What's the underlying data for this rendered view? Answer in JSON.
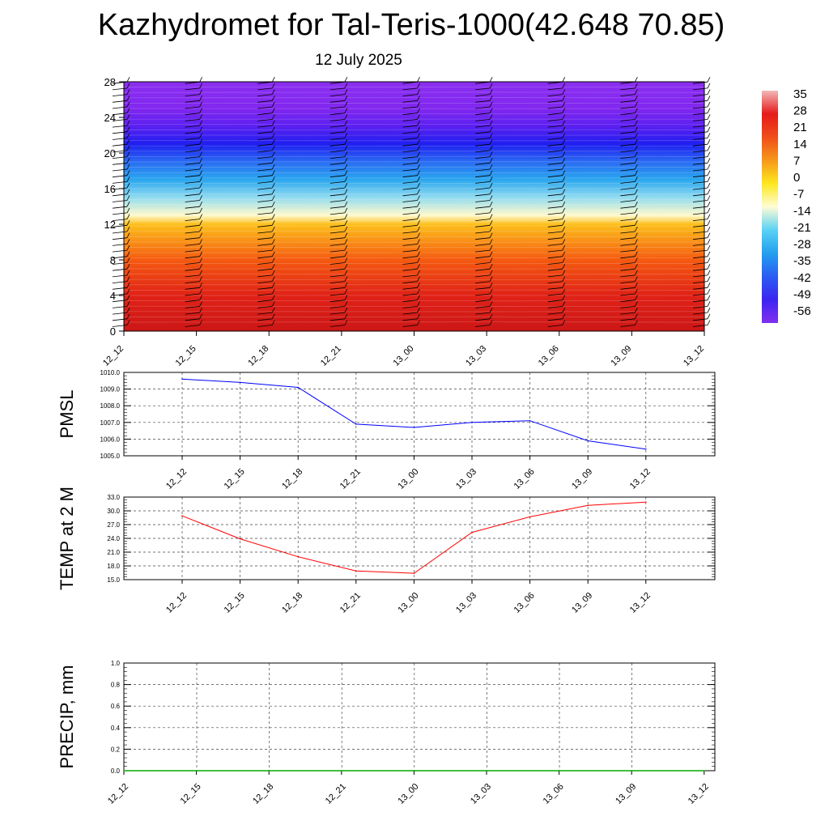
{
  "title": "Kazhydromet for Tal-Teris-1000(42.648 70.85)",
  "subtitle": "12 July 2025",
  "chart_data": [
    {
      "type": "heatmap",
      "description_role": "vertical temperature cross-section",
      "y_ticks": [
        0,
        4,
        8,
        12,
        16,
        20,
        24,
        28
      ],
      "ylim": [
        0,
        28
      ],
      "x_ticks": [
        "12_12",
        "12_15",
        "12_18",
        "12_21",
        "13_00",
        "13_03",
        "13_06",
        "13_09",
        "13_12"
      ],
      "colorbar_labels": [
        "35",
        "28",
        "21",
        "14",
        "7",
        "0",
        "-7",
        "-14",
        "-21",
        "-28",
        "-35",
        "-42",
        "-49",
        "-56"
      ],
      "colorbar_colors": [
        "#f4b7b7",
        "#e51a1a",
        "#f04e1a",
        "#f7981a",
        "#fde81f",
        "#fffcd6",
        "#5ad2f5",
        "#239fee",
        "#2b5cf3",
        "#3b24f0",
        "#8230ef"
      ],
      "profile_levels": [
        0,
        4,
        8,
        12,
        13,
        15,
        17,
        19,
        21,
        23,
        25,
        28
      ],
      "profile_colors": [
        "#cc1717",
        "#e02217",
        "#f55a10",
        "#fcc01c",
        "#fff9cc",
        "#92dcf0",
        "#2aa7ef",
        "#2a6cf3",
        "#1f1ff0",
        "#5b20f0",
        "#8127ef",
        "#8b2ff0"
      ]
    },
    {
      "type": "line",
      "ylabel": "PMSL",
      "categories": [
        "12_12",
        "12_15",
        "12_18",
        "12_21",
        "13_00",
        "13_03",
        "13_06",
        "13_09",
        "13_12"
      ],
      "values": [
        1009.6,
        1009.4,
        1009.1,
        1006.9,
        1006.7,
        1007.0,
        1007.1,
        1005.9,
        1005.4
      ],
      "ylim": [
        1005.0,
        1010.0
      ],
      "y_ticks": [
        "1005.0",
        "1006.0",
        "1007.0",
        "1008.0",
        "1009.0",
        "1010.0"
      ],
      "color": "#0000ff",
      "grid": true
    },
    {
      "type": "line",
      "ylabel": "TEMP at 2 M",
      "categories": [
        "12_12",
        "12_15",
        "12_18",
        "12_21",
        "13_00",
        "13_03",
        "13_06",
        "13_09",
        "13_12"
      ],
      "values": [
        28.9,
        23.9,
        20.0,
        16.9,
        16.4,
        25.3,
        28.7,
        31.2,
        31.9
      ],
      "ylim": [
        15.0,
        33.0
      ],
      "y_ticks": [
        "15.0",
        "18.0",
        "21.0",
        "24.0",
        "27.0",
        "30.0",
        "33.0"
      ],
      "color": "#ff0000",
      "grid": true
    },
    {
      "type": "line",
      "ylabel": "PRECIP, mm",
      "categories": [
        "12_12",
        "12_15",
        "12_18",
        "12_21",
        "13_00",
        "13_03",
        "13_06",
        "13_09",
        "13_12"
      ],
      "values": [
        0,
        0,
        0,
        0,
        0,
        0,
        0,
        0,
        0
      ],
      "ylim": [
        0.0,
        1.0
      ],
      "y_ticks": [
        "0.0",
        "0.2",
        "0.4",
        "0.6",
        "0.8",
        "1.0"
      ],
      "color": "#00aa00",
      "grid": true
    }
  ]
}
